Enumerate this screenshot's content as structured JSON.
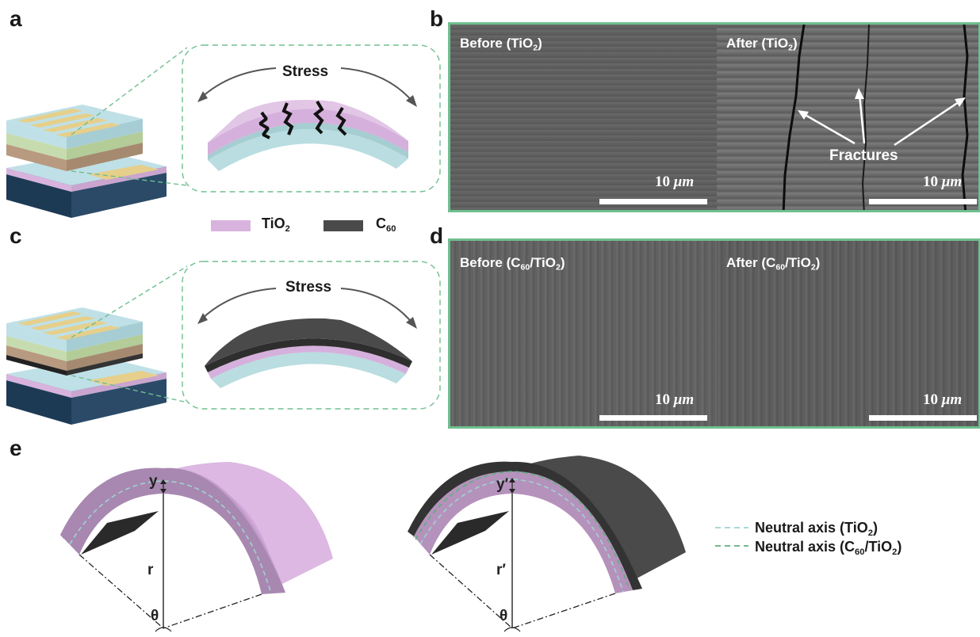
{
  "panels": {
    "a": "a",
    "b": "b",
    "c": "c",
    "d": "d",
    "e": "e"
  },
  "stress_label": "Stress",
  "legend": {
    "tio2_main": "TiO",
    "tio2_sub": "2",
    "c60_main": "C",
    "c60_sub": "60",
    "tio2_color": "#d8b3dd",
    "c60_color": "#4a4a4a"
  },
  "sem_b": {
    "left_title": "Before (TiO",
    "left_sub": "2",
    "left_end": ")",
    "right_title": "After (TiO",
    "right_sub": "2",
    "right_end": ")",
    "fractures_label": "Fractures",
    "scale_num": "10",
    "scale_unit": "μm"
  },
  "sem_d": {
    "left_title": "Before (C",
    "left_sub1": "60",
    "left_mid": "/TiO",
    "left_sub2": "2",
    "left_end": ")",
    "right_title": "After (C",
    "right_sub1": "60",
    "right_mid": "/TiO",
    "right_sub2": "2",
    "right_end": ")",
    "scale_num": "10",
    "scale_unit": "μm"
  },
  "panel_e": {
    "y_label": "y",
    "y_prime_label": "y′",
    "r_label": "r",
    "r_prime_label": "r′",
    "theta": "θ",
    "legend1_main": "Neutral axis (TiO",
    "legend1_sub": "2",
    "legend1_end": ")",
    "legend2_main": "Neutral axis (C",
    "legend2_sub1": "60",
    "legend2_mid": "/TiO",
    "legend2_sub2": "2",
    "legend2_end": ")",
    "legend1_color": "#9fd3d0",
    "legend2_color": "#5fae7e"
  },
  "colors": {
    "border_green": "#6fbf8f",
    "substrate_blue": "#a9cdd4",
    "sem_gray": "#5a5a5a"
  }
}
